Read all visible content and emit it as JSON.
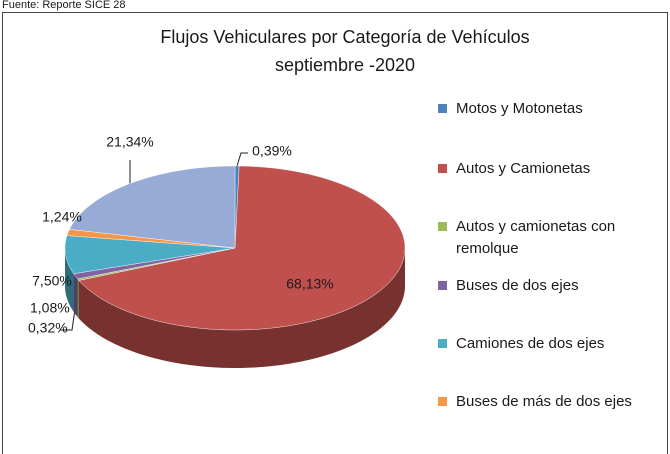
{
  "source": "Fuente: Reporte SICE 28",
  "chart_data": {
    "type": "pie3d",
    "title": "Flujos Vehiculares por Categoría de Vehículos",
    "subtitle": "septiembre -2020",
    "categories": [
      "Motos y Motonetas",
      "Autos y Camionetas",
      "Autos y camionetas con remolque",
      "Buses de dos ejes",
      "Camiones de dos ejes",
      "Buses de más de dos ejes",
      null
    ],
    "values": [
      0.39,
      68.13,
      0.32,
      1.08,
      7.5,
      1.24,
      21.34
    ],
    "value_labels": [
      "0,39%",
      "68,13%",
      "0,32%",
      "1,08%",
      "7,50%",
      "1,24%",
      "21,34%"
    ],
    "colors": [
      "#4f81bd",
      "#c0504d",
      "#9bbb59",
      "#8064a2",
      "#4bacc6",
      "#f79646",
      "#98abd6"
    ]
  }
}
